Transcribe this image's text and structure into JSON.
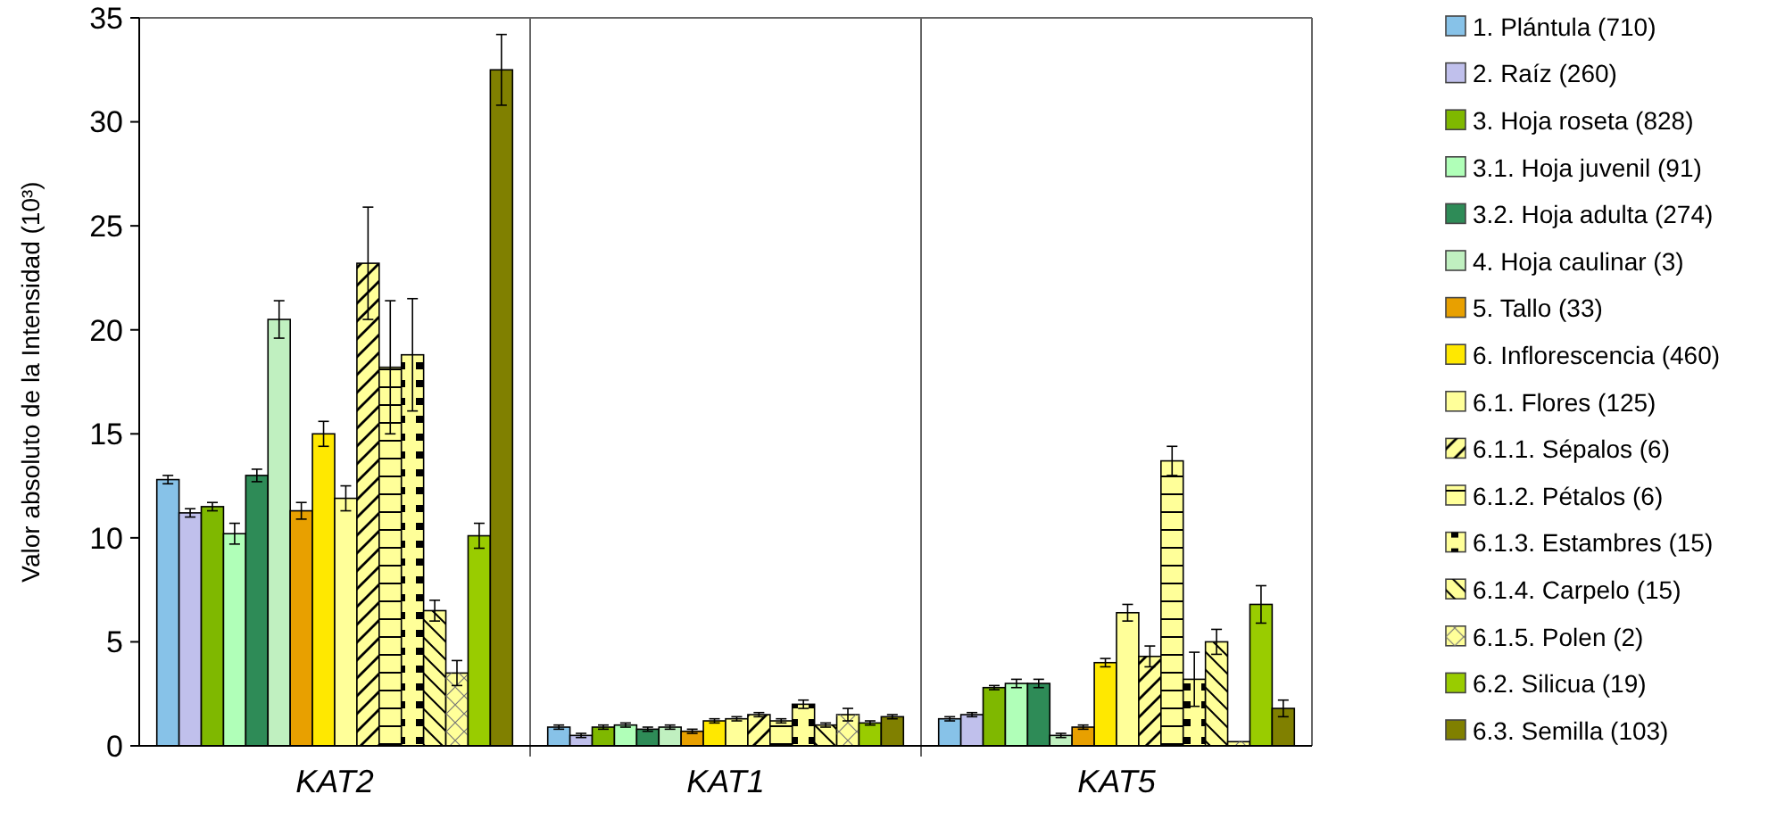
{
  "chart_data": {
    "type": "bar",
    "ylabel": "Valor absoluto de la Intensidad (10³)",
    "categories": [
      "KAT2",
      "KAT1",
      "KAT5"
    ],
    "ylim": [
      0,
      35
    ],
    "yticks": [
      0,
      5,
      10,
      15,
      20,
      25,
      30,
      35
    ],
    "grid": false,
    "legend": "right",
    "series": [
      {
        "name": "1. Plántula (710)",
        "color": "#87c2e8",
        "values": [
          12.8,
          0.9,
          1.3
        ],
        "errors": [
          0.2,
          0.1,
          0.1
        ]
      },
      {
        "name": "2. Raíz (260)",
        "color": "#c0c0ec",
        "values": [
          11.2,
          0.5,
          1.5
        ],
        "errors": [
          0.2,
          0.1,
          0.1
        ]
      },
      {
        "name": "3. Hoja roseta (828)",
        "color": "#7fb800",
        "values": [
          11.5,
          0.9,
          2.8
        ],
        "errors": [
          0.2,
          0.1,
          0.1
        ]
      },
      {
        "name": "3.1. Hoja juvenil (91)",
        "color": "#b0ffb8",
        "values": [
          10.2,
          1.0,
          3.0
        ],
        "errors": [
          0.5,
          0.1,
          0.2
        ]
      },
      {
        "name": "3.2. Hoja adulta (274)",
        "color": "#2e8b57",
        "values": [
          13.0,
          0.8,
          3.0
        ],
        "errors": [
          0.3,
          0.1,
          0.2
        ]
      },
      {
        "name": "4. Hoja caulinar (3)",
        "color": "#c0f0c0",
        "values": [
          20.5,
          0.9,
          0.5
        ],
        "errors": [
          0.9,
          0.1,
          0.1
        ]
      },
      {
        "name": "5. Tallo (33)",
        "color": "#e8a000",
        "values": [
          11.3,
          0.7,
          0.9
        ],
        "errors": [
          0.4,
          0.1,
          0.1
        ]
      },
      {
        "name": "6. Inflorescencia (460)",
        "color": "#ffe800",
        "values": [
          15.0,
          1.2,
          4.0
        ],
        "errors": [
          0.6,
          0.1,
          0.2
        ]
      },
      {
        "name": "6.1. Flores (125)",
        "color": "#ffff99",
        "values": [
          11.9,
          1.3,
          6.4
        ],
        "errors": [
          0.6,
          0.1,
          0.4
        ]
      },
      {
        "name": "6.1.1. Sépalos (6)",
        "color": "#ffff99",
        "values": [
          23.2,
          1.5,
          4.3
        ],
        "errors": [
          2.7,
          0.1,
          0.5
        ]
      },
      {
        "name": "6.1.2. Pétalos (6)",
        "color": "#ffff99",
        "values": [
          18.2,
          1.2,
          13.7
        ],
        "errors": [
          3.2,
          0.1,
          0.7
        ]
      },
      {
        "name": "6.1.3. Estambres (15)",
        "color": "#ffff99",
        "values": [
          18.8,
          2.0,
          3.2
        ],
        "errors": [
          2.7,
          0.2,
          1.3
        ]
      },
      {
        "name": "6.1.4. Carpelo (15)",
        "color": "#ffff99",
        "values": [
          6.5,
          1.0,
          5.0
        ],
        "errors": [
          0.5,
          0.1,
          0.6
        ]
      },
      {
        "name": "6.1.5. Polen (2)",
        "color": "#ffff99",
        "values": [
          3.5,
          1.5,
          0.2
        ],
        "errors": [
          0.6,
          0.3,
          null
        ]
      },
      {
        "name": "6.2. Silicua (19)",
        "color": "#99cc00",
        "values": [
          10.1,
          1.1,
          6.8
        ],
        "errors": [
          0.6,
          0.1,
          0.9
        ]
      },
      {
        "name": "6.3. Semilla (103)",
        "color": "#808000",
        "values": [
          32.5,
          1.4,
          1.8
        ],
        "errors": [
          1.7,
          0.1,
          0.4
        ]
      }
    ]
  }
}
